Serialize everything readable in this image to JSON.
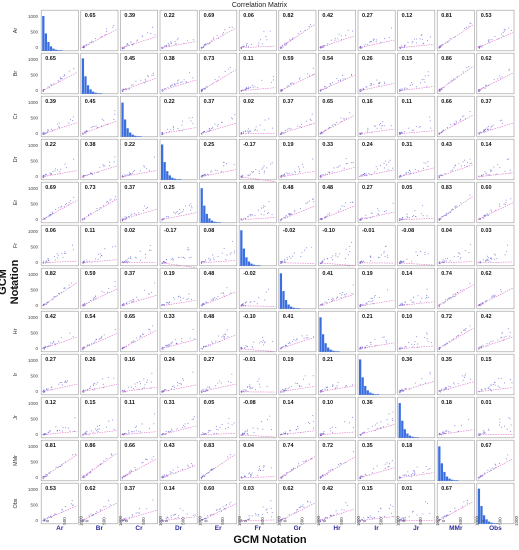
{
  "chart_data": {
    "type": "scatter-matrix",
    "title": "Correlation Matrix",
    "xlabel": "GCM Notation",
    "ylabel": "GCM Notation",
    "variables": [
      "Ar",
      "Br",
      "Cr",
      "Dr",
      "Er",
      "Fr",
      "Gr",
      "Hr",
      "Ir",
      "Jr",
      "MMr",
      "Obs"
    ],
    "axis_ticks": [
      "0",
      "500",
      "1000"
    ],
    "diagonal": "histogram",
    "colors": {
      "points": "#5a5acc",
      "fit_line": "#e070c8",
      "histogram": "#3b6fe0"
    },
    "correlations": [
      [
        null,
        0.65,
        0.39,
        0.22,
        0.69,
        0.06,
        0.82,
        0.42,
        0.27,
        0.12,
        0.81,
        0.53
      ],
      [
        0.65,
        null,
        0.45,
        0.38,
        0.73,
        0.11,
        0.59,
        0.54,
        0.26,
        0.15,
        0.86,
        0.62
      ],
      [
        0.39,
        0.45,
        null,
        0.22,
        0.37,
        0.02,
        0.37,
        0.65,
        0.16,
        0.11,
        0.66,
        0.37
      ],
      [
        0.22,
        0.38,
        0.22,
        null,
        0.25,
        -0.17,
        0.19,
        0.33,
        0.24,
        0.31,
        0.43,
        0.14
      ],
      [
        0.69,
        0.73,
        0.37,
        0.25,
        null,
        0.08,
        0.48,
        0.48,
        0.27,
        0.05,
        0.83,
        0.6
      ],
      [
        0.06,
        0.11,
        0.02,
        -0.17,
        0.08,
        null,
        -0.02,
        -0.1,
        -0.01,
        -0.08,
        0.04,
        0.03
      ],
      [
        0.82,
        0.59,
        0.37,
        0.19,
        0.48,
        -0.02,
        null,
        0.41,
        0.19,
        0.14,
        0.74,
        0.62
      ],
      [
        0.42,
        0.54,
        0.65,
        0.33,
        0.48,
        -0.1,
        0.41,
        null,
        0.21,
        0.1,
        0.72,
        0.42
      ],
      [
        0.27,
        0.26,
        0.16,
        0.24,
        0.27,
        -0.01,
        0.19,
        0.21,
        null,
        0.36,
        0.35,
        0.15
      ],
      [
        0.12,
        0.15,
        0.11,
        0.31,
        0.05,
        -0.08,
        0.14,
        0.1,
        0.36,
        null,
        0.18,
        0.01
      ],
      [
        0.81,
        0.86,
        0.66,
        0.43,
        0.83,
        0.04,
        0.74,
        0.72,
        0.35,
        0.18,
        null,
        0.67
      ],
      [
        0.53,
        0.62,
        0.37,
        0.14,
        0.6,
        0.03,
        0.62,
        0.42,
        0.15,
        0.01,
        0.67,
        null
      ]
    ]
  }
}
